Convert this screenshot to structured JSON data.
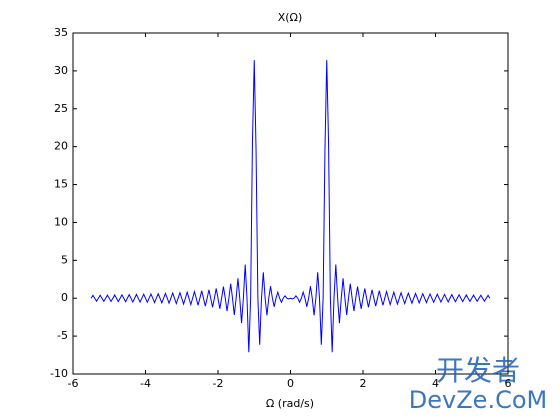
{
  "chart_data": {
    "type": "line",
    "title": "X(Ω)",
    "x_label": "Ω (rad/s)",
    "xlim": [
      -6,
      6
    ],
    "xticks": [
      -6,
      -4,
      -2,
      0,
      2,
      4,
      6
    ],
    "ylim": [
      -10,
      35
    ],
    "yticks": [
      -10,
      -5,
      0,
      5,
      10,
      15,
      20,
      25,
      30,
      35
    ],
    "grid": false,
    "x": [
      -5.5,
      -5.45,
      -5.4,
      -5.35,
      -5.3,
      -5.25,
      -5.2,
      -5.15,
      -5.1,
      -5.05,
      -5,
      -4.95,
      -4.9,
      -4.85,
      -4.8,
      -4.75,
      -4.7,
      -4.65,
      -4.6,
      -4.55,
      -4.5,
      -4.45,
      -4.4,
      -4.35,
      -4.3,
      -4.25,
      -4.2,
      -4.15,
      -4.1,
      -4.05,
      -4,
      -3.95,
      -3.9,
      -3.85,
      -3.8,
      -3.75,
      -3.7,
      -3.65,
      -3.6,
      -3.55,
      -3.5,
      -3.45,
      -3.4,
      -3.35,
      -3.3,
      -3.25,
      -3.2,
      -3.15,
      -3.1,
      -3.05,
      -3,
      -2.95,
      -2.9,
      -2.85,
      -2.8,
      -2.75,
      -2.7,
      -2.65,
      -2.6,
      -2.55,
      -2.5,
      -2.45,
      -2.4,
      -2.35,
      -2.3,
      -2.25,
      -2.2,
      -2.15,
      -2.1,
      -2.05,
      -2,
      -1.95,
      -1.9,
      -1.85,
      -1.8,
      -1.75,
      -1.7,
      -1.65,
      -1.6,
      -1.55,
      -1.5,
      -1.45,
      -1.4,
      -1.35,
      -1.3,
      -1.25,
      -1.2,
      -1.15,
      -1.1,
      -1.05,
      -1,
      -0.95,
      -0.9,
      -0.85,
      -0.8,
      -0.75,
      -0.7,
      -0.65,
      -0.6,
      -0.55,
      -0.5,
      -0.45,
      -0.4,
      -0.35,
      -0.3,
      -0.25,
      -0.2,
      -0.15,
      -0.1,
      -0.05,
      0,
      0.05,
      0.1,
      0.15,
      0.2,
      0.25,
      0.3,
      0.35,
      0.4,
      0.45,
      0.5,
      0.55,
      0.6,
      0.65,
      0.7,
      0.75,
      0.8,
      0.85,
      0.9,
      0.95,
      1,
      1.05,
      1.1,
      1.15,
      1.2,
      1.25,
      1.3,
      1.35,
      1.4,
      1.45,
      1.5,
      1.55,
      1.6,
      1.65,
      1.7,
      1.75,
      1.8,
      1.85,
      1.9,
      1.95,
      2,
      2.05,
      2.1,
      2.15,
      2.2,
      2.25,
      2.3,
      2.35,
      2.4,
      2.45,
      2.5,
      2.55,
      2.6,
      2.65,
      2.7,
      2.75,
      2.8,
      2.85,
      2.9,
      2.95,
      3,
      3.05,
      3.1,
      3.15,
      3.2,
      3.25,
      3.3,
      3.35,
      3.4,
      3.45,
      3.5,
      3.55,
      3.6,
      3.65,
      3.7,
      3.75,
      3.8,
      3.85,
      3.9,
      3.95,
      4,
      4.05,
      4.1,
      4.15,
      4.2,
      4.25,
      4.3,
      4.35,
      4.4,
      4.45,
      4.5,
      4.55,
      4.6,
      4.65,
      4.7,
      4.75,
      4.8,
      4.85,
      4.9,
      4.95,
      5,
      5.05,
      5.1,
      5.15,
      5.2,
      5.25,
      5.3,
      5.35,
      5.4,
      5.45,
      5.5
    ],
    "series": [
      {
        "color": "#0000ff",
        "values": [
          0,
          0.38,
          0,
          -0.39,
          0,
          0.4,
          0,
          -0.4,
          0,
          0.41,
          0,
          -0.42,
          0,
          0.43,
          0,
          -0.44,
          0,
          0.45,
          0,
          -0.46,
          0,
          0.47,
          0,
          -0.49,
          0,
          0.5,
          0,
          -0.51,
          0,
          0.53,
          0,
          -0.54,
          0,
          0.56,
          0,
          -0.57,
          0,
          0.59,
          0,
          -0.61,
          0,
          0.63,
          0,
          -0.66,
          0,
          0.68,
          0,
          -0.71,
          0,
          0.73,
          0,
          -0.77,
          0,
          0.8,
          0,
          -0.84,
          0,
          0.88,
          0,
          -0.93,
          0,
          0.98,
          0,
          -1.04,
          0,
          1.11,
          0,
          -1.19,
          0,
          1.28,
          0,
          -1.39,
          0,
          1.53,
          0,
          -1.7,
          0,
          1.92,
          0,
          -2.21,
          0,
          2.63,
          0,
          -3.28,
          0,
          4.44,
          0,
          -7.13,
          0,
          20.49,
          31.42,
          19.49,
          0,
          -6.13,
          0,
          3.43,
          0,
          -2.25,
          0,
          1.58,
          0,
          -1.13,
          0,
          0.8,
          0,
          -0.53,
          0,
          0.31,
          0,
          -0.1,
          0,
          -0.1,
          0,
          0.31,
          0,
          -0.53,
          0,
          0.8,
          0,
          -1.13,
          0,
          1.58,
          0,
          -2.25,
          0,
          3.43,
          0,
          -6.13,
          0,
          19.49,
          31.42,
          20.49,
          0,
          -7.13,
          0,
          4.44,
          0,
          -3.28,
          0,
          2.63,
          0,
          -2.21,
          0,
          1.92,
          0,
          -1.7,
          0,
          1.53,
          0,
          -1.39,
          0,
          1.28,
          0,
          -1.19,
          0,
          1.11,
          0,
          -1.04,
          0,
          0.98,
          0,
          -0.93,
          0,
          0.88,
          0,
          -0.84,
          0,
          0.8,
          0,
          -0.77,
          0,
          0.73,
          0,
          -0.71,
          0,
          0.68,
          0,
          -0.66,
          0,
          0.63,
          0,
          -0.61,
          0,
          0.59,
          0,
          -0.57,
          0,
          0.56,
          0,
          -0.54,
          0,
          0.53,
          0,
          -0.51,
          0,
          0.5,
          0,
          -0.49,
          0,
          0.47,
          0,
          -0.46,
          0,
          0.45,
          0,
          -0.44,
          0,
          0.43,
          0,
          -0.42,
          0,
          0.41,
          0,
          -0.4,
          0,
          0.4,
          0,
          -0.39,
          0,
          0.38,
          0
        ]
      }
    ],
    "watermark": [
      "开发者",
      "DevZe.CoM"
    ]
  }
}
